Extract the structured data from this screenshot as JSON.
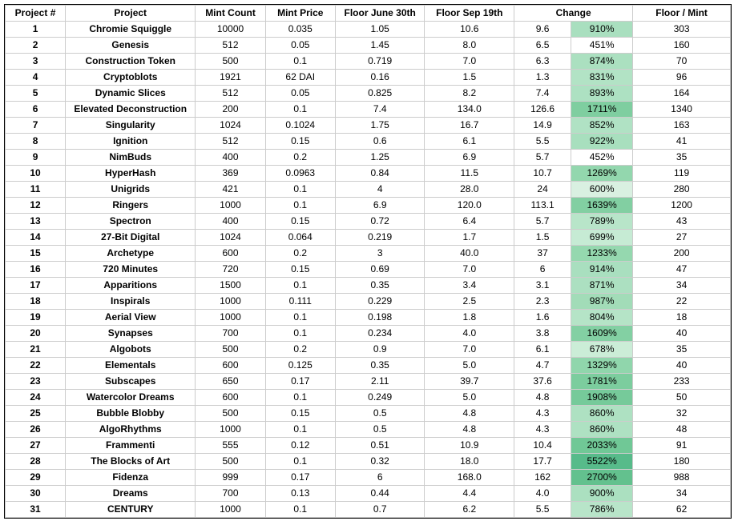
{
  "headers": {
    "project_num": "Project #",
    "project": "Project",
    "mint_count": "Mint Count",
    "mint_price": "Mint Price",
    "floor_june": "Floor June 30th",
    "floor_sep": "Floor Sep 19th",
    "change": "Change",
    "floor_mint": "Floor / Mint"
  },
  "colors": {
    "background": "#ffffff",
    "border": "#cccccc",
    "outer_border": "#000000",
    "text": "#000000"
  },
  "rows": [
    {
      "n": "1",
      "proj": "Chromie Squiggle",
      "mc": "10000",
      "mp": "0.035",
      "fj": "1.05",
      "fs": "10.6",
      "ca": "9.6",
      "cb": "910%",
      "fm": "303",
      "pct": 910,
      "clr": "#a9dfbf"
    },
    {
      "n": "2",
      "proj": "Genesis",
      "mc": "512",
      "mp": "0.05",
      "fj": "1.45",
      "fs": "8.0",
      "ca": "6.5",
      "cb": "451%",
      "fm": "160",
      "pct": 451,
      "clr": "#ffffff"
    },
    {
      "n": "3",
      "proj": "Construction Token",
      "mc": "500",
      "mp": "0.1",
      "fj": "0.719",
      "fs": "7.0",
      "ca": "6.3",
      "cb": "874%",
      "fm": "70",
      "pct": 874,
      "clr": "#abe0c0"
    },
    {
      "n": "4",
      "proj": "Cryptoblots",
      "mc": "1921",
      "mp": "62 DAI",
      "fj": "0.16",
      "fs": "1.5",
      "ca": "1.3",
      "cb": "831%",
      "fm": "96",
      "pct": 831,
      "clr": "#b2e3c5"
    },
    {
      "n": "5",
      "proj": "Dynamic Slices",
      "mc": "512",
      "mp": "0.05",
      "fj": "0.825",
      "fs": "8.2",
      "ca": "7.4",
      "cb": "893%",
      "fm": "164",
      "pct": 893,
      "clr": "#ade1c2"
    },
    {
      "n": "6",
      "proj": "Elevated Deconstruction",
      "mc": "200",
      "mp": "0.1",
      "fj": "7.4",
      "fs": "134.0",
      "ca": "126.6",
      "cb": "1711%",
      "fm": "1340",
      "pct": 1711,
      "clr": "#7fcea0"
    },
    {
      "n": "7",
      "proj": "Singularity",
      "mc": "1024",
      "mp": "0.1024",
      "fj": "1.75",
      "fs": "16.7",
      "ca": "14.9",
      "cb": "852%",
      "fm": "163",
      "pct": 852,
      "clr": "#b0e2c4"
    },
    {
      "n": "8",
      "proj": "Ignition",
      "mc": "512",
      "mp": "0.15",
      "fj": "0.6",
      "fs": "6.1",
      "ca": "5.5",
      "cb": "922%",
      "fm": "41",
      "pct": 922,
      "clr": "#a8dfbe"
    },
    {
      "n": "9",
      "proj": "NimBuds",
      "mc": "400",
      "mp": "0.2",
      "fj": "1.25",
      "fs": "6.9",
      "ca": "5.7",
      "cb": "452%",
      "fm": "35",
      "pct": 452,
      "clr": "#ffffff"
    },
    {
      "n": "10",
      "proj": "HyperHash",
      "mc": "369",
      "mp": "0.0963",
      "fj": "0.84",
      "fs": "11.5",
      "ca": "10.7",
      "cb": "1269%",
      "fm": "119",
      "pct": 1269,
      "clr": "#93d7ae"
    },
    {
      "n": "11",
      "proj": "Unigrids",
      "mc": "421",
      "mp": "0.1",
      "fj": "4",
      "fs": "28.0",
      "ca": "24",
      "cb": "600%",
      "fm": "280",
      "pct": 600,
      "clr": "#d9f0e1"
    },
    {
      "n": "12",
      "proj": "Ringers",
      "mc": "1000",
      "mp": "0.1",
      "fj": "6.9",
      "fs": "120.0",
      "ca": "113.1",
      "cb": "1639%",
      "fm": "1200",
      "pct": 1639,
      "clr": "#82cfa2"
    },
    {
      "n": "13",
      "proj": "Spectron",
      "mc": "400",
      "mp": "0.15",
      "fj": "0.72",
      "fs": "6.4",
      "ca": "5.7",
      "cb": "789%",
      "fm": "43",
      "pct": 789,
      "clr": "#b8e5c9"
    },
    {
      "n": "14",
      "proj": "27-Bit Digital",
      "mc": "1024",
      "mp": "0.064",
      "fj": "0.219",
      "fs": "1.7",
      "ca": "1.5",
      "cb": "699%",
      "fm": "27",
      "pct": 699,
      "clr": "#c6ebd4"
    },
    {
      "n": "15",
      "proj": "Archetype",
      "mc": "600",
      "mp": "0.2",
      "fj": "3",
      "fs": "40.0",
      "ca": "37",
      "cb": "1233%",
      "fm": "200",
      "pct": 1233,
      "clr": "#95d8af"
    },
    {
      "n": "16",
      "proj": "720 Minutes",
      "mc": "720",
      "mp": "0.15",
      "fj": "0.69",
      "fs": "7.0",
      "ca": "6",
      "cb": "914%",
      "fm": "47",
      "pct": 914,
      "clr": "#a9dfbf"
    },
    {
      "n": "17",
      "proj": "Apparitions",
      "mc": "1500",
      "mp": "0.1",
      "fj": "0.35",
      "fs": "3.4",
      "ca": "3.1",
      "cb": "871%",
      "fm": "34",
      "pct": 871,
      "clr": "#ace0c1"
    },
    {
      "n": "18",
      "proj": "Inspirals",
      "mc": "1000",
      "mp": "0.111",
      "fj": "0.229",
      "fs": "2.5",
      "ca": "2.3",
      "cb": "987%",
      "fm": "22",
      "pct": 987,
      "clr": "#a2dcb8"
    },
    {
      "n": "19",
      "proj": "Aerial View",
      "mc": "1000",
      "mp": "0.1",
      "fj": "0.198",
      "fs": "1.8",
      "ca": "1.6",
      "cb": "804%",
      "fm": "18",
      "pct": 804,
      "clr": "#b5e4c7"
    },
    {
      "n": "20",
      "proj": "Synapses",
      "mc": "700",
      "mp": "0.1",
      "fj": "0.234",
      "fs": "4.0",
      "ca": "3.8",
      "cb": "1609%",
      "fm": "40",
      "pct": 1609,
      "clr": "#83d0a3"
    },
    {
      "n": "21",
      "proj": "Algobots",
      "mc": "500",
      "mp": "0.2",
      "fj": "0.9",
      "fs": "7.0",
      "ca": "6.1",
      "cb": "678%",
      "fm": "35",
      "pct": 678,
      "clr": "#cbedd7"
    },
    {
      "n": "22",
      "proj": "Elementals",
      "mc": "600",
      "mp": "0.125",
      "fj": "0.35",
      "fs": "5.0",
      "ca": "4.7",
      "cb": "1329%",
      "fm": "40",
      "pct": 1329,
      "clr": "#90d6ac"
    },
    {
      "n": "23",
      "proj": "Subscapes",
      "mc": "650",
      "mp": "0.17",
      "fj": "2.11",
      "fs": "39.7",
      "ca": "37.6",
      "cb": "1781%",
      "fm": "233",
      "pct": 1781,
      "clr": "#7ccd9e"
    },
    {
      "n": "24",
      "proj": "Watercolor Dreams",
      "mc": "600",
      "mp": "0.1",
      "fj": "0.249",
      "fs": "5.0",
      "ca": "4.8",
      "cb": "1908%",
      "fm": "50",
      "pct": 1908,
      "clr": "#76ca9a"
    },
    {
      "n": "25",
      "proj": "Bubble Blobby",
      "mc": "500",
      "mp": "0.15",
      "fj": "0.5",
      "fs": "4.8",
      "ca": "4.3",
      "cb": "860%",
      "fm": "32",
      "pct": 860,
      "clr": "#aee1c2"
    },
    {
      "n": "26",
      "proj": "AlgoRhythms",
      "mc": "1000",
      "mp": "0.1",
      "fj": "0.5",
      "fs": "4.8",
      "ca": "4.3",
      "cb": "860%",
      "fm": "48",
      "pct": 860,
      "clr": "#aee1c2"
    },
    {
      "n": "27",
      "proj": "Frammenti",
      "mc": "555",
      "mp": "0.12",
      "fj": "0.51",
      "fs": "10.9",
      "ca": "10.4",
      "cb": "2033%",
      "fm": "91",
      "pct": 2033,
      "clr": "#70c896"
    },
    {
      "n": "28",
      "proj": "The Blocks of Art",
      "mc": "500",
      "mp": "0.1",
      "fj": "0.32",
      "fs": "18.0",
      "ca": "17.7",
      "cb": "5522%",
      "fm": "180",
      "pct": 5522,
      "clr": "#57bb8a"
    },
    {
      "n": "29",
      "proj": "Fidenza",
      "mc": "999",
      "mp": "0.17",
      "fj": "6",
      "fs": "168.0",
      "ca": "162",
      "cb": "2700%",
      "fm": "988",
      "pct": 2700,
      "clr": "#63c18e"
    },
    {
      "n": "30",
      "proj": "Dreams",
      "mc": "700",
      "mp": "0.13",
      "fj": "0.44",
      "fs": "4.4",
      "ca": "4.0",
      "cb": "900%",
      "fm": "34",
      "pct": 900,
      "clr": "#abe0c0"
    },
    {
      "n": "31",
      "proj": "CENTURY",
      "mc": "1000",
      "mp": "0.1",
      "fj": "0.7",
      "fs": "6.2",
      "ca": "5.5",
      "cb": "786%",
      "fm": "62",
      "pct": 786,
      "clr": "#b8e5c9"
    }
  ]
}
